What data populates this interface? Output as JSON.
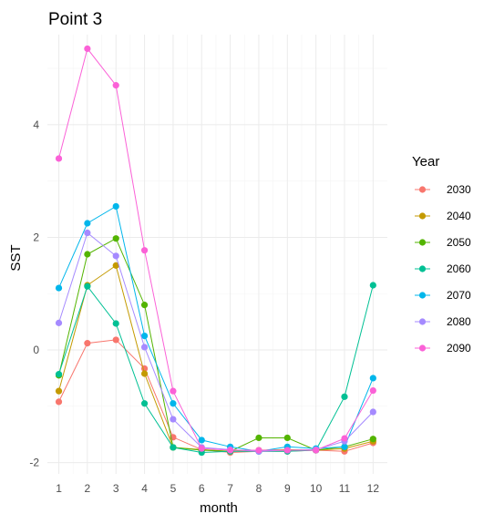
{
  "chart_data": {
    "type": "line",
    "title": "Point 3",
    "xlabel": "month",
    "ylabel": "SST",
    "x": [
      1,
      2,
      3,
      4,
      5,
      6,
      7,
      8,
      9,
      10,
      11,
      12
    ],
    "xlim": [
      0.6,
      12.5
    ],
    "ylim": [
      -2.2,
      5.6
    ],
    "yticks": [
      -2,
      0,
      2,
      4
    ],
    "legend_title": "Year",
    "legend_position": "right",
    "grid": true,
    "series": [
      {
        "name": "2030",
        "color": "#F8766D",
        "values": [
          -0.92,
          0.12,
          0.18,
          -0.33,
          -1.55,
          -1.77,
          -1.82,
          -1.8,
          -1.8,
          -1.78,
          -1.8,
          -1.65
        ]
      },
      {
        "name": "2040",
        "color": "#C49A00",
        "values": [
          -0.73,
          1.15,
          1.5,
          -0.42,
          -1.73,
          -1.77,
          -1.8,
          -1.78,
          -1.77,
          -1.78,
          -1.75,
          -1.62
        ]
      },
      {
        "name": "2050",
        "color": "#53B400",
        "values": [
          -0.45,
          1.7,
          1.98,
          0.8,
          -1.73,
          -1.78,
          -1.8,
          -1.56,
          -1.56,
          -1.78,
          -1.72,
          -1.58
        ]
      },
      {
        "name": "2060",
        "color": "#00C094",
        "values": [
          -0.43,
          1.13,
          0.47,
          -0.95,
          -1.73,
          -1.82,
          -1.8,
          -1.8,
          -1.8,
          -1.78,
          -0.83,
          1.15
        ]
      },
      {
        "name": "2070",
        "color": "#00B6EB",
        "values": [
          1.1,
          2.25,
          2.55,
          0.25,
          -0.95,
          -1.6,
          -1.72,
          -1.8,
          -1.72,
          -1.75,
          -1.72,
          -0.5
        ]
      },
      {
        "name": "2080",
        "color": "#A58AFF",
        "values": [
          0.48,
          2.08,
          1.67,
          0.05,
          -1.23,
          -1.73,
          -1.77,
          -1.8,
          -1.78,
          -1.77,
          -1.62,
          -1.1
        ]
      },
      {
        "name": "2090",
        "color": "#FB61D7",
        "values": [
          3.4,
          5.35,
          4.7,
          1.77,
          -0.73,
          -1.75,
          -1.78,
          -1.78,
          -1.78,
          -1.78,
          -1.57,
          -0.72
        ]
      }
    ]
  }
}
